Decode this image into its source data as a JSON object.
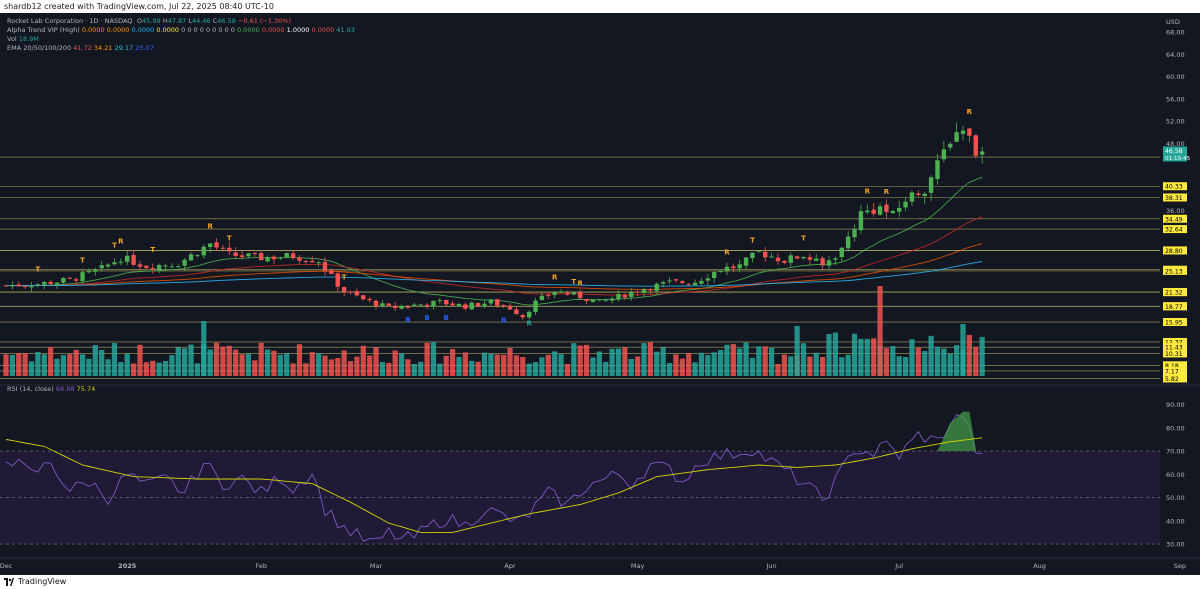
{
  "header": {
    "credit": "shardb12 created with TradingView.com, Jul 22, 2025 08:40 UTC-10"
  },
  "footer": {
    "brand": "TradingView"
  },
  "legend": {
    "symbol_line": "Rocket Lab Corporation · 1D · NASDAQ",
    "ohlc": [
      {
        "label": "O",
        "value": "45.99"
      },
      {
        "label": "H",
        "value": "47.87"
      },
      {
        "label": "L",
        "value": "44.46"
      },
      {
        "label": "C",
        "value": "46.58"
      }
    ],
    "change": "−0.61 (−1.30%)",
    "alpha_trend_name": "Alpha Trend VIP (High)",
    "alpha_trend_values": [
      "0.0000",
      "0.0000",
      "0.0000",
      "0.0000"
    ],
    "alpha_trend_zeros": "0 0 0 0 0 0 0 0 0",
    "alpha_trend_tail": [
      "0.0000",
      "0.0000",
      "1.0000",
      "0.0000",
      "41.93"
    ],
    "vol_name": "Vol",
    "vol_value": "18.9M",
    "ema_name": "EMA 20/50/100/200",
    "ema_values": [
      "41.72",
      "34.21",
      "29.17",
      "25.07"
    ],
    "rsi_name": "RSI (14, close)",
    "rsi_values": [
      "68.88",
      "75.74"
    ]
  },
  "colors": {
    "background": "#131722",
    "rsi_band": "#1f1b36",
    "up": "#26a69a",
    "down": "#ef5350",
    "bright_up": "#4caf50",
    "bright_down": "#ff5252",
    "level_line": "#d8cf6a",
    "ema20": "#4caf50",
    "ema50": "#c62828",
    "ema100": "#e65100",
    "ema200": "#29b6f6",
    "rsi_line": "#7e57c2",
    "rsi_ma": "#d4d400",
    "axis_text": "#b2b5be"
  },
  "chart_data": {
    "type": "candlestick",
    "currency": "USD",
    "price_axis_ticks": [
      "68.00",
      "64.00",
      "60.00",
      "56.00",
      "52.00",
      "48.00",
      "36.00"
    ],
    "price_range": [
      5.0,
      70.0
    ],
    "last_price_label": "46.58",
    "countdown_label": "01:19:45",
    "levels": [
      "45.56",
      "40.33",
      "38.31",
      "34.49",
      "32.64",
      "28.80",
      "28.80",
      "25.34",
      "25.13",
      "21.33",
      "21.32",
      "18.79",
      "18.77",
      "15.95",
      "12.37",
      "11.43",
      "10.31",
      "8.18",
      "7.17",
      "5.82"
    ],
    "time_labels": [
      {
        "text": "Dec",
        "i": 0
      },
      {
        "text": "2025",
        "i": 19
      },
      {
        "text": "Feb",
        "i": 40
      },
      {
        "text": "Mar",
        "i": 58
      },
      {
        "text": "Apr",
        "i": 79
      },
      {
        "text": "May",
        "i": 99
      },
      {
        "text": "Jun",
        "i": 120
      },
      {
        "text": "Jul",
        "i": 140
      },
      {
        "text": "Aug",
        "i": 162
      },
      {
        "text": "Sep",
        "i": 184
      }
    ],
    "anchors": [
      [
        0,
        22.5
      ],
      [
        5,
        22.8
      ],
      [
        10,
        23.5
      ],
      [
        15,
        25.5
      ],
      [
        18,
        27.5
      ],
      [
        22,
        26
      ],
      [
        27,
        26.5
      ],
      [
        32,
        30
      ],
      [
        35,
        28
      ],
      [
        40,
        27.5
      ],
      [
        45,
        27.8
      ],
      [
        49,
        27
      ],
      [
        51,
        24
      ],
      [
        53,
        21.5
      ],
      [
        56,
        20
      ],
      [
        60,
        18.5
      ],
      [
        64,
        19
      ],
      [
        68,
        19.5
      ],
      [
        72,
        18.8
      ],
      [
        76,
        19.5
      ],
      [
        79,
        18.5
      ],
      [
        81,
        17
      ],
      [
        83,
        19.5
      ],
      [
        86,
        21.5
      ],
      [
        90,
        20.5
      ],
      [
        93,
        19.5
      ],
      [
        96,
        20.5
      ],
      [
        100,
        22
      ],
      [
        104,
        23
      ],
      [
        108,
        23.2
      ],
      [
        112,
        25.5
      ],
      [
        115,
        26
      ],
      [
        118,
        28.5
      ],
      [
        122,
        27
      ],
      [
        125,
        28
      ],
      [
        128,
        26
      ],
      [
        131,
        29
      ],
      [
        134,
        35.5
      ],
      [
        137,
        36.5
      ],
      [
        139,
        35
      ],
      [
        141,
        38
      ],
      [
        144,
        40
      ],
      [
        146,
        44
      ],
      [
        148,
        49
      ],
      [
        150,
        51
      ],
      [
        152,
        47
      ],
      [
        153,
        46.58
      ]
    ],
    "markers": [
      {
        "i": 5,
        "text": "T",
        "pos": "above",
        "color": "#f5a623"
      },
      {
        "i": 12,
        "text": "T",
        "pos": "above",
        "color": "#f5a623"
      },
      {
        "i": 17,
        "text": "T",
        "pos": "above",
        "color": "#f5a623"
      },
      {
        "i": 18,
        "text": "R",
        "pos": "above",
        "color": "#f5a623"
      },
      {
        "i": 23,
        "text": "T",
        "pos": "above",
        "color": "#f5a623"
      },
      {
        "i": 32,
        "text": "R",
        "pos": "above",
        "color": "#f5a623"
      },
      {
        "i": 35,
        "text": "T",
        "pos": "above",
        "color": "#f5a623"
      },
      {
        "i": 53,
        "text": "T",
        "pos": "above",
        "color": "#f5a623"
      },
      {
        "i": 63,
        "text": "B",
        "pos": "below",
        "color": "#2962ff"
      },
      {
        "i": 66,
        "text": "B",
        "pos": "below",
        "color": "#2962ff"
      },
      {
        "i": 69,
        "text": "B",
        "pos": "below",
        "color": "#2962ff"
      },
      {
        "i": 78,
        "text": "B",
        "pos": "below",
        "color": "#2962ff"
      },
      {
        "i": 82,
        "text": "R",
        "pos": "below",
        "color": "#26a69a"
      },
      {
        "i": 86,
        "text": "R",
        "pos": "above",
        "color": "#f5a623"
      },
      {
        "i": 89,
        "text": "T",
        "pos": "above",
        "color": "#f5a623"
      },
      {
        "i": 90,
        "text": "R",
        "pos": "above",
        "color": "#f5a623"
      },
      {
        "i": 113,
        "text": "R",
        "pos": "above",
        "color": "#f5a623"
      },
      {
        "i": 117,
        "text": "T",
        "pos": "above",
        "color": "#f5a623"
      },
      {
        "i": 125,
        "text": "T",
        "pos": "above",
        "color": "#f5a623"
      },
      {
        "i": 135,
        "text": "R",
        "pos": "above",
        "color": "#f5a623"
      },
      {
        "i": 138,
        "text": "R",
        "pos": "above",
        "color": "#f5a623"
      },
      {
        "i": 151,
        "text": "R",
        "pos": "above",
        "color": "#f5a623"
      }
    ],
    "rsi_axis_ticks": [
      "90.00",
      "80.00",
      "70.00",
      "60.00",
      "50.00",
      "40.00",
      "30.00"
    ],
    "rsi_range": [
      27,
      95
    ],
    "rsi_anchors": [
      [
        0,
        68
      ],
      [
        4,
        60
      ],
      [
        7,
        65
      ],
      [
        10,
        53
      ],
      [
        13,
        57
      ],
      [
        16,
        50
      ],
      [
        19,
        60
      ],
      [
        22,
        55
      ],
      [
        25,
        58
      ],
      [
        28,
        52
      ],
      [
        31,
        65
      ],
      [
        34,
        56
      ],
      [
        37,
        58
      ],
      [
        40,
        52
      ],
      [
        43,
        59
      ],
      [
        45,
        54
      ],
      [
        48,
        61
      ],
      [
        50,
        45
      ],
      [
        53,
        37
      ],
      [
        56,
        32
      ],
      [
        58,
        30
      ],
      [
        60,
        35
      ],
      [
        62,
        32
      ],
      [
        64,
        33
      ],
      [
        66,
        37
      ],
      [
        69,
        41
      ],
      [
        72,
        38
      ],
      [
        75,
        45
      ],
      [
        78,
        42
      ],
      [
        80,
        39
      ],
      [
        82,
        43
      ],
      [
        85,
        52
      ],
      [
        88,
        47
      ],
      [
        91,
        55
      ],
      [
        94,
        58
      ],
      [
        96,
        60
      ],
      [
        98,
        56
      ],
      [
        101,
        64
      ],
      [
        104,
        62
      ],
      [
        106,
        57
      ],
      [
        109,
        66
      ],
      [
        112,
        68
      ],
      [
        114,
        69
      ],
      [
        117,
        71
      ],
      [
        119,
        67
      ],
      [
        122,
        62
      ],
      [
        124,
        58
      ],
      [
        126,
        54
      ],
      [
        128,
        49
      ],
      [
        130,
        57
      ],
      [
        133,
        71
      ],
      [
        136,
        69
      ],
      [
        138,
        73
      ],
      [
        140,
        68
      ],
      [
        143,
        77
      ],
      [
        146,
        74
      ],
      [
        148,
        82
      ],
      [
        150,
        86
      ],
      [
        151,
        78
      ],
      [
        152,
        71
      ],
      [
        153,
        68.88
      ]
    ],
    "rsi_ma_anchors": [
      [
        0,
        75
      ],
      [
        6,
        72
      ],
      [
        12,
        64
      ],
      [
        20,
        59
      ],
      [
        30,
        58
      ],
      [
        40,
        58
      ],
      [
        48,
        56
      ],
      [
        54,
        48
      ],
      [
        60,
        39
      ],
      [
        65,
        35
      ],
      [
        70,
        35
      ],
      [
        76,
        39
      ],
      [
        82,
        43
      ],
      [
        90,
        47
      ],
      [
        96,
        52
      ],
      [
        102,
        59
      ],
      [
        110,
        62
      ],
      [
        118,
        64
      ],
      [
        124,
        63
      ],
      [
        130,
        64
      ],
      [
        136,
        67
      ],
      [
        142,
        71
      ],
      [
        148,
        74
      ],
      [
        153,
        75.74
      ]
    ]
  }
}
